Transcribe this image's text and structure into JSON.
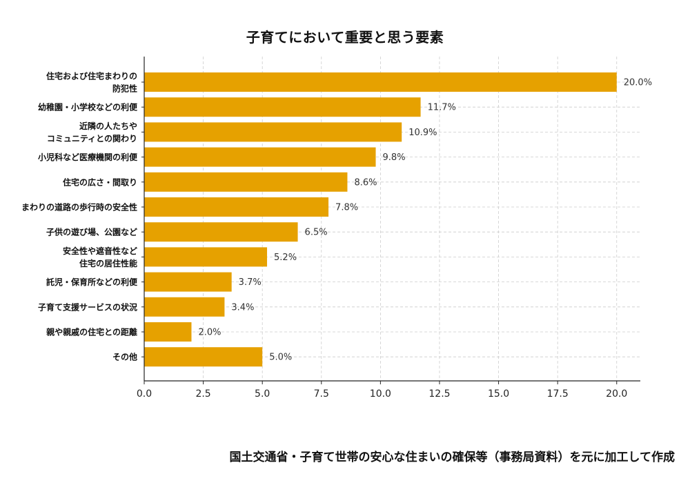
{
  "title": "子育てにおいて重要と思う要素",
  "source_note": "国土交通省・子育て世帯の安心な住まいの確保等（事務局資料）を元に加工して作成",
  "chart_data": {
    "type": "bar",
    "orientation": "horizontal",
    "title": "子育てにおいて重要と思う要素",
    "xlabel": "",
    "ylabel": "",
    "xlim": [
      0,
      21
    ],
    "grid": true,
    "bar_color": "#E6A100",
    "categories": [
      "住宅および住宅まわりの\n防犯性",
      "幼稚園・小学校などの利便",
      "近隣の人たちや\nコミュニティとの関わり",
      "小児科など医療機関の利便",
      "住宅の広さ・間取り",
      "まわりの道路の歩行時の安全性",
      "子供の遊び場、公園など",
      "安全性や遮音性など\n住宅の居住性能",
      "託児・保育所などの利便",
      "子育て支援サービスの状況",
      "親や親戚の住宅との距離",
      "その他"
    ],
    "values": [
      20.0,
      11.7,
      10.9,
      9.8,
      8.6,
      7.8,
      6.5,
      5.2,
      3.7,
      3.4,
      2.0,
      5.0
    ],
    "value_labels": [
      "20.0%",
      "11.7%",
      "10.9%",
      "9.8%",
      "8.6%",
      "7.8%",
      "6.5%",
      "5.2%",
      "3.7%",
      "3.4%",
      "2.0%",
      "5.0%"
    ],
    "xticks": [
      0.0,
      2.5,
      5.0,
      7.5,
      10.0,
      12.5,
      15.0,
      17.5,
      20.0
    ],
    "xtick_labels": [
      "0.0",
      "2.5",
      "5.0",
      "7.5",
      "10.0",
      "12.5",
      "15.0",
      "17.5",
      "20.0"
    ]
  }
}
